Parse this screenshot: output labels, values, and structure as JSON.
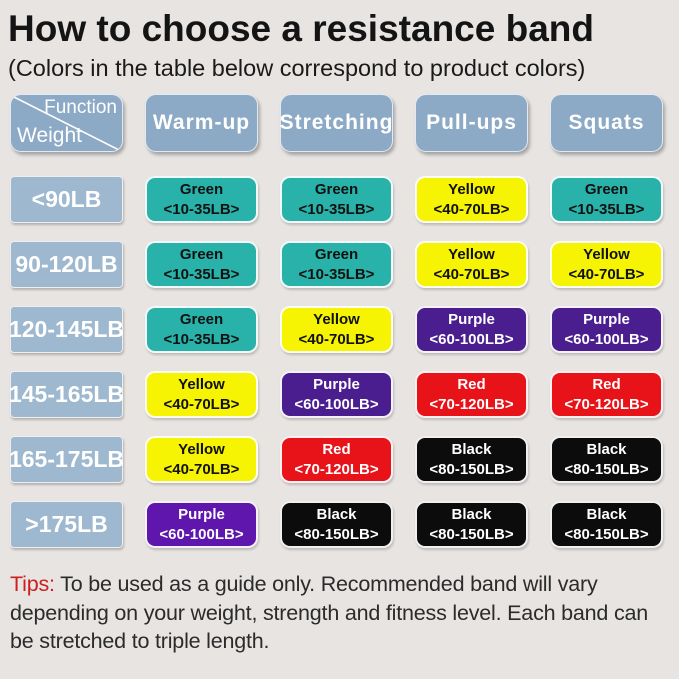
{
  "header": {
    "title": "How to choose a resistance band",
    "subtitle": "(Colors in the table below correspond to product colors)"
  },
  "table": {
    "corner": {
      "function_label": "Function",
      "weight_label": "Weight"
    },
    "columns": [
      "Warm-up",
      "Stretching",
      "Pull-ups",
      "Squats"
    ],
    "bands": {
      "green": {
        "name": "Green",
        "range": "<10-35LB>",
        "bg": "#29b2aa",
        "fg": "#111111"
      },
      "yellow": {
        "name": "Yellow",
        "range": "<40-70LB>",
        "bg": "#f6f303",
        "fg": "#111111"
      },
      "purple": {
        "name": "Purple",
        "range": "<60-100LB>",
        "bg": "#4b1e90",
        "fg": "#ffffff"
      },
      "purple-bright": {
        "name": "Purple",
        "range": "<60-100LB>",
        "bg": "#5e16ad",
        "fg": "#ffffff"
      },
      "red": {
        "name": "Red",
        "range": "<70-120LB>",
        "bg": "#e81219",
        "fg": "#ffffff"
      },
      "black": {
        "name": "Black",
        "range": "<80-150LB>",
        "bg": "#0c0c0c",
        "fg": "#ffffff"
      }
    },
    "rows": [
      {
        "weight": "<90LB",
        "cells": [
          "green",
          "green",
          "yellow",
          "green"
        ]
      },
      {
        "weight": "90-120LB",
        "cells": [
          "green",
          "green",
          "yellow",
          "yellow"
        ]
      },
      {
        "weight": "120-145LB",
        "cells": [
          "green",
          "yellow",
          "purple",
          "purple"
        ]
      },
      {
        "weight": "145-165LB",
        "cells": [
          "yellow",
          "purple",
          "red",
          "red"
        ]
      },
      {
        "weight": "165-175LB",
        "cells": [
          "yellow",
          "red",
          "black",
          "black"
        ]
      },
      {
        "weight": ">175LB",
        "cells": [
          "purple-bright",
          "black",
          "black",
          "black"
        ]
      }
    ]
  },
  "tips": {
    "label": "Tips:",
    "text": " To be used as a guide only. Recommended band will vary depending on your weight, strength and fitness level. Each band can be stretched to triple length."
  },
  "colors": {
    "background": "#e7e4e2",
    "header_cell": "#8ca9c6",
    "weight_cell": "#9db8cf",
    "tips_label": "#cc2020"
  },
  "chart_data": {
    "type": "table",
    "title": "How to choose a resistance band",
    "subtitle": "(Colors in the table below correspond to product colors)",
    "columns": [
      "Function / Weight",
      "Warm-up",
      "Stretching",
      "Pull-ups",
      "Squats"
    ],
    "rows": [
      [
        "<90LB",
        "Green <10-35LB>",
        "Green <10-35LB>",
        "Yellow <40-70LB>",
        "Green <10-35LB>"
      ],
      [
        "90-120LB",
        "Green <10-35LB>",
        "Green <10-35LB>",
        "Yellow <40-70LB>",
        "Yellow <40-70LB>"
      ],
      [
        "120-145LB",
        "Green <10-35LB>",
        "Yellow <40-70LB>",
        "Purple <60-100LB>",
        "Purple <60-100LB>"
      ],
      [
        "145-165LB",
        "Yellow <40-70LB>",
        "Purple <60-100LB>",
        "Red <70-120LB>",
        "Red <70-120LB>"
      ],
      [
        "165-175LB",
        "Yellow <40-70LB>",
        "Red <70-120LB>",
        "Black <80-150LB>",
        "Black <80-150LB>"
      ],
      [
        ">175LB",
        "Purple <60-100LB>",
        "Black <80-150LB>",
        "Black <80-150LB>",
        "Black <80-150LB>"
      ]
    ],
    "annotation": "Tips: To be used as a guide only. Recommended band will vary depending on your weight, strength and fitness level. Each band can be stretched to triple length."
  }
}
